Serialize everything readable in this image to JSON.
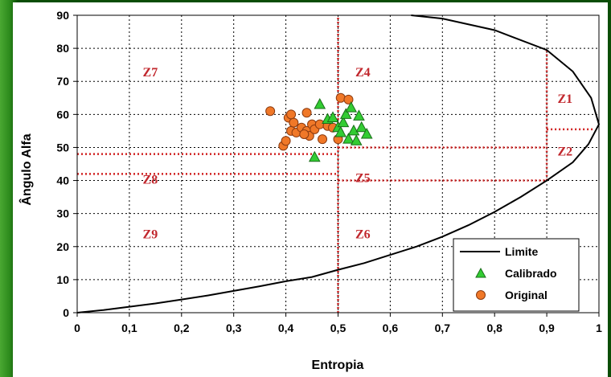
{
  "chart_data": {
    "type": "scatter",
    "xlabel": "Entropia",
    "ylabel": "Ângulo Alfa",
    "xlim": [
      0,
      1
    ],
    "ylim": [
      0,
      90
    ],
    "x_ticks": [
      "0",
      "0,1",
      "0,2",
      "0,3",
      "0,4",
      "0,5",
      "0,6",
      "0,7",
      "0,8",
      "0,9",
      "1"
    ],
    "y_ticks": [
      "0",
      "10",
      "20",
      "30",
      "40",
      "50",
      "60",
      "70",
      "80",
      "90"
    ],
    "grid": true,
    "legend_position": "bottom-right",
    "colors": {
      "limite": "#000000",
      "calibrado": "#33cc33",
      "original": "#f07828",
      "zone_lines": "#d02020",
      "zone_labels": "#c1272d"
    },
    "limit_curve": {
      "name": "Limite",
      "points": [
        [
          0,
          0
        ],
        [
          0.05,
          0.8
        ],
        [
          0.1,
          1.8
        ],
        [
          0.15,
          2.8
        ],
        [
          0.2,
          4
        ],
        [
          0.25,
          5.2
        ],
        [
          0.3,
          6.6
        ],
        [
          0.35,
          8
        ],
        [
          0.4,
          9.5
        ],
        [
          0.45,
          10.8
        ],
        [
          0.5,
          13
        ],
        [
          0.55,
          15
        ],
        [
          0.6,
          17.5
        ],
        [
          0.65,
          20
        ],
        [
          0.7,
          23
        ],
        [
          0.75,
          26.5
        ],
        [
          0.8,
          30.5
        ],
        [
          0.85,
          35
        ],
        [
          0.9,
          40
        ],
        [
          0.95,
          45.5
        ],
        [
          0.98,
          51
        ],
        [
          1,
          57
        ],
        [
          0.985,
          65
        ],
        [
          0.95,
          73
        ],
        [
          0.9,
          79.5
        ],
        [
          0.8,
          85.5
        ],
        [
          0.7,
          89
        ],
        [
          0.64,
          90
        ]
      ]
    },
    "series": [
      {
        "name": "Calibrado",
        "marker": "triangle",
        "points": [
          [
            0.455,
            47
          ],
          [
            0.465,
            63
          ],
          [
            0.48,
            58.5
          ],
          [
            0.49,
            59
          ],
          [
            0.5,
            56
          ],
          [
            0.505,
            54.5
          ],
          [
            0.51,
            57.5
          ],
          [
            0.515,
            60
          ],
          [
            0.52,
            52.5
          ],
          [
            0.525,
            62
          ],
          [
            0.53,
            55
          ],
          [
            0.535,
            52
          ],
          [
            0.54,
            59.5
          ],
          [
            0.545,
            56
          ],
          [
            0.555,
            54
          ]
        ]
      },
      {
        "name": "Original",
        "marker": "circle",
        "points": [
          [
            0.37,
            61
          ],
          [
            0.395,
            50.5
          ],
          [
            0.4,
            52
          ],
          [
            0.405,
            59
          ],
          [
            0.41,
            60
          ],
          [
            0.41,
            55
          ],
          [
            0.415,
            57.5
          ],
          [
            0.42,
            54.5
          ],
          [
            0.43,
            56
          ],
          [
            0.44,
            60.5
          ],
          [
            0.44,
            55
          ],
          [
            0.445,
            53.5
          ],
          [
            0.45,
            57
          ],
          [
            0.455,
            55.5
          ],
          [
            0.465,
            57
          ],
          [
            0.47,
            52.5
          ],
          [
            0.48,
            56.5
          ],
          [
            0.49,
            56
          ],
          [
            0.5,
            52.5
          ],
          [
            0.505,
            65
          ],
          [
            0.52,
            64.5
          ],
          [
            0.435,
            54
          ]
        ]
      }
    ],
    "zone_boundaries": [
      {
        "x": [
          0.5,
          0.5
        ],
        "y": [
          0,
          90
        ]
      },
      {
        "x": [
          0.9,
          0.9
        ],
        "y": [
          40,
          80
        ]
      },
      {
        "x": [
          0,
          0.5
        ],
        "y": [
          48,
          48
        ]
      },
      {
        "x": [
          0,
          0.5
        ],
        "y": [
          42,
          42
        ]
      },
      {
        "x": [
          0.5,
          0.9
        ],
        "y": [
          50,
          50
        ]
      },
      {
        "x": [
          0.5,
          0.9
        ],
        "y": [
          40,
          40
        ]
      },
      {
        "x": [
          0.9,
          0.99
        ],
        "y": [
          55.5,
          55.5
        ]
      }
    ],
    "zones": [
      {
        "label": "Z1",
        "x": 0.935,
        "y": 65
      },
      {
        "label": "Z2",
        "x": 0.935,
        "y": 49
      },
      {
        "label": "Z4",
        "x": 0.5475,
        "y": 73
      },
      {
        "label": "Z5",
        "x": 0.5475,
        "y": 41
      },
      {
        "label": "Z6",
        "x": 0.5475,
        "y": 24
      },
      {
        "label": "Z7",
        "x": 0.14,
        "y": 73
      },
      {
        "label": "Z8",
        "x": 0.14,
        "y": 40.5
      },
      {
        "label": "Z9",
        "x": 0.14,
        "y": 24
      }
    ],
    "legend": [
      "Limite",
      "Calibrado",
      "Original"
    ]
  }
}
